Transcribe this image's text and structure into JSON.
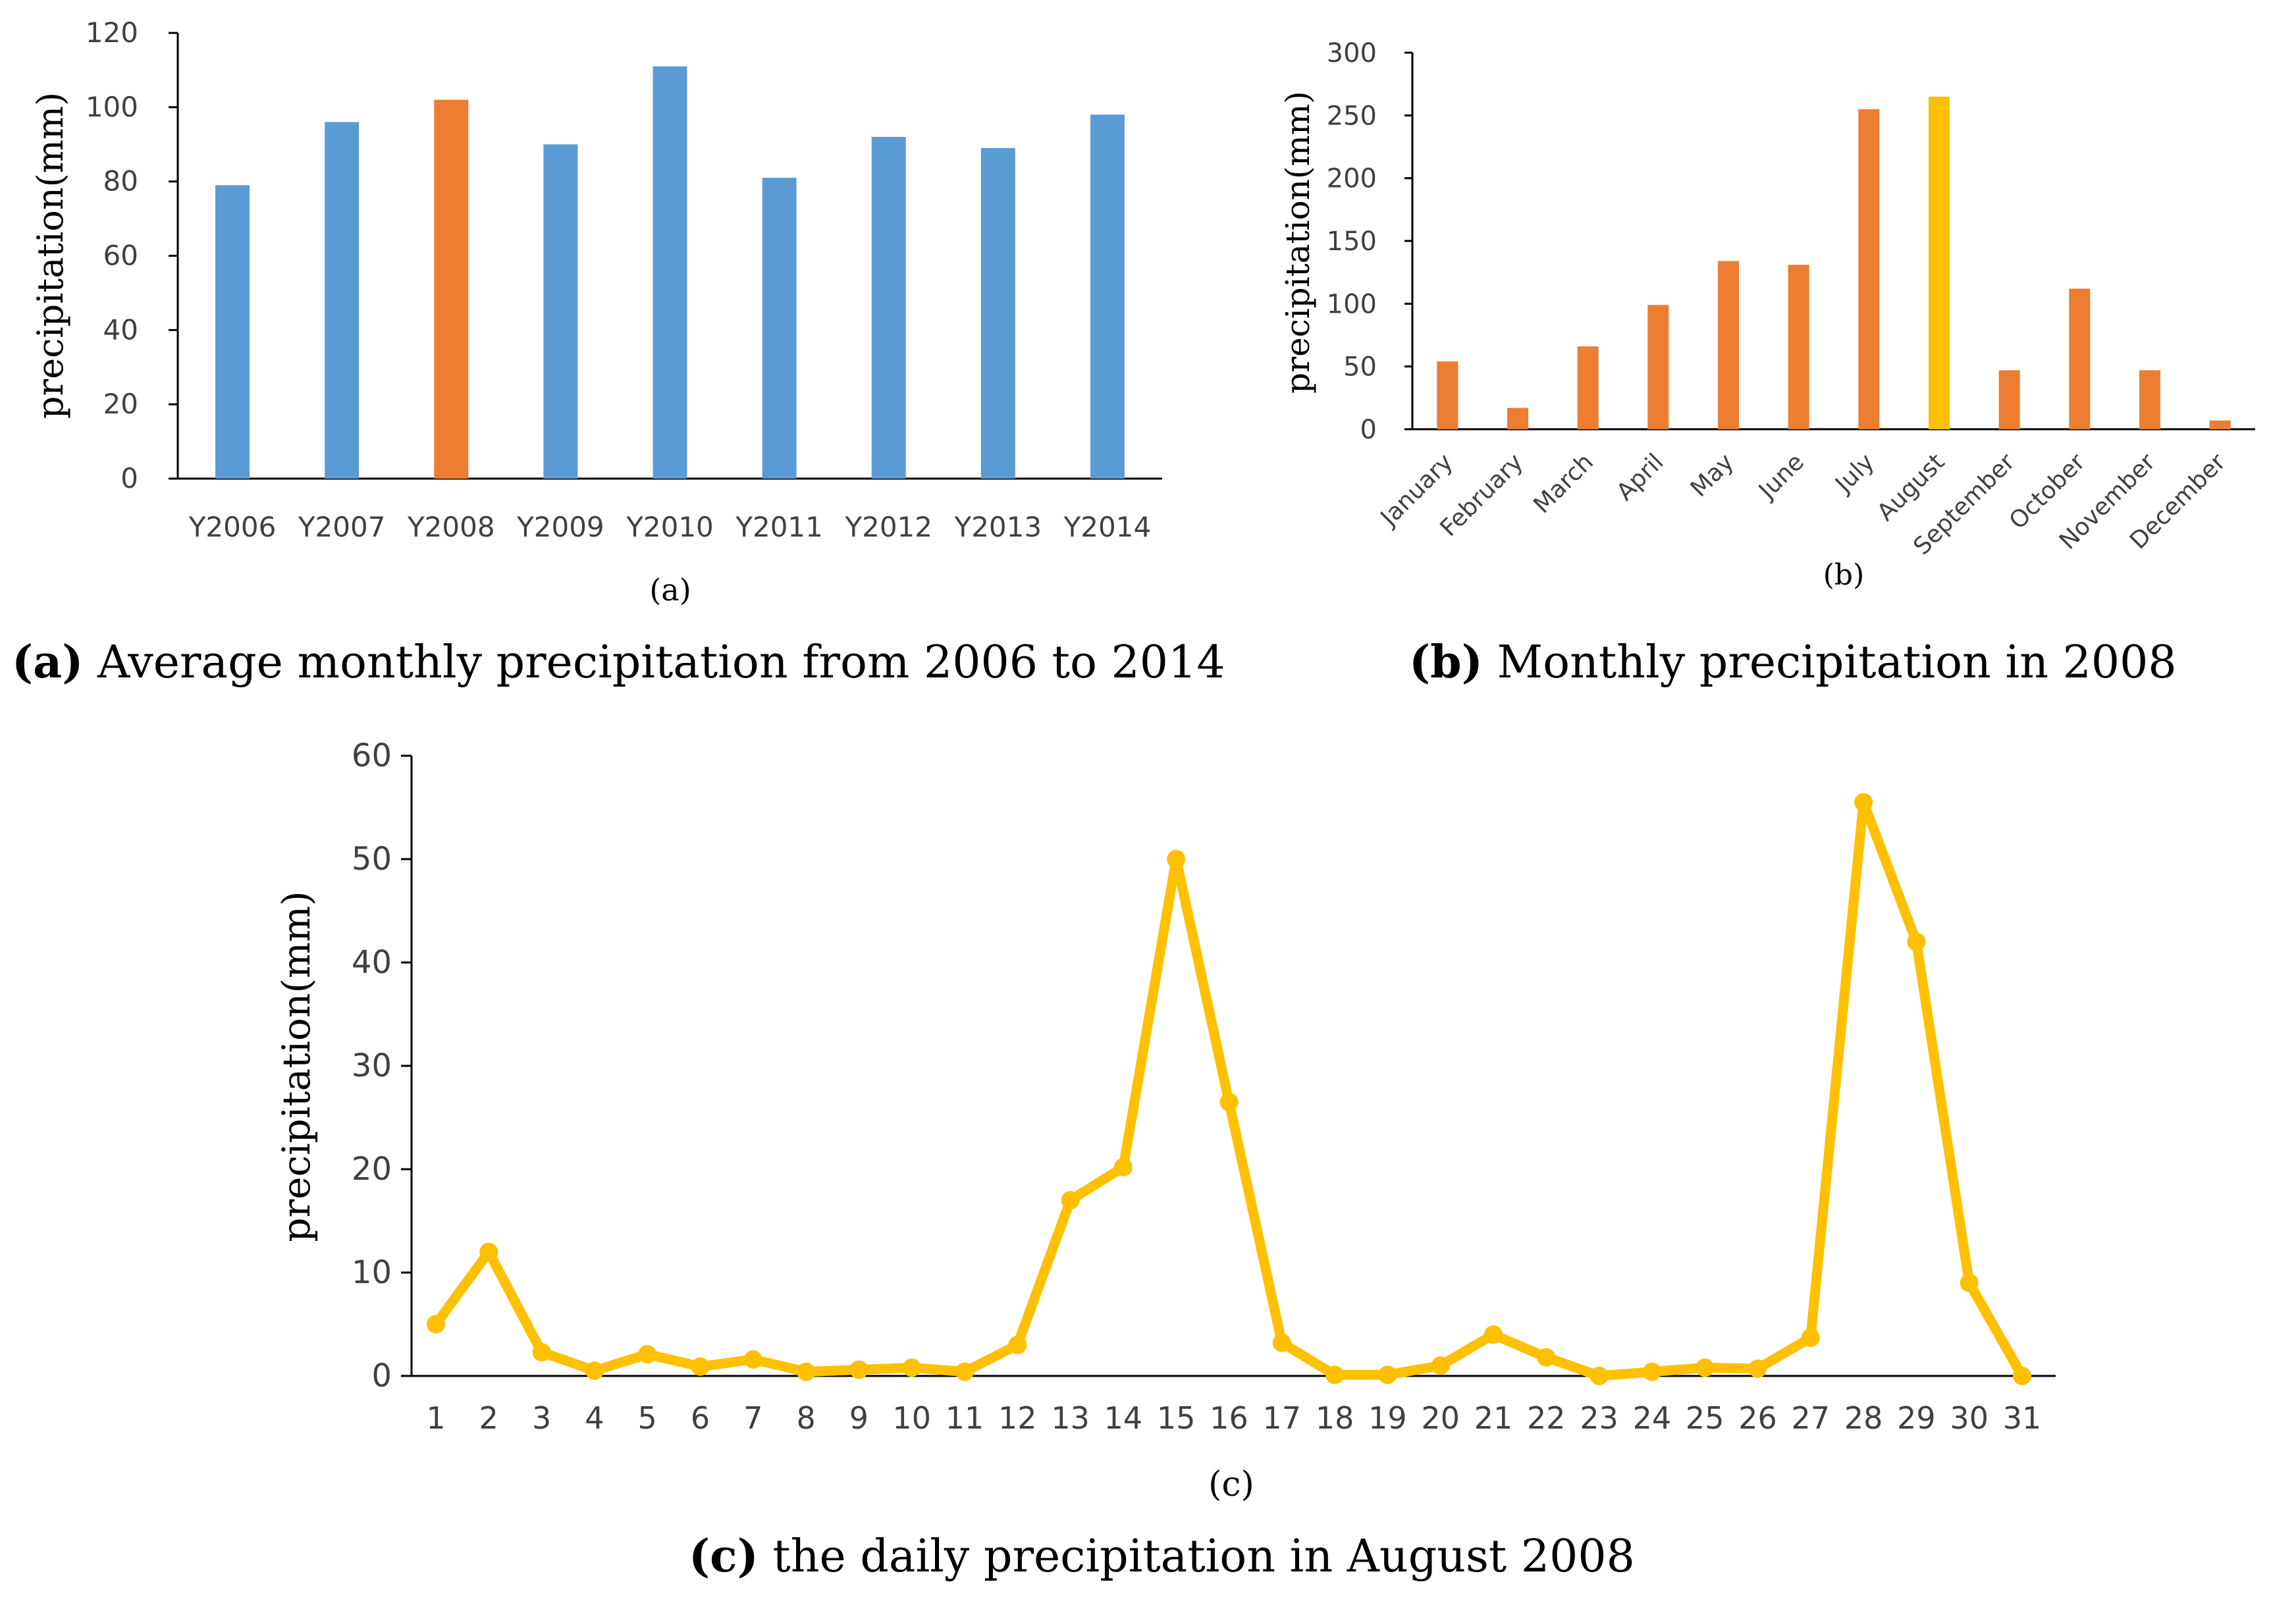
{
  "colors": {
    "blue": "#5B9BD5",
    "orange": "#ED7D31",
    "gold": "#FFC000",
    "axis": "#000000",
    "tick_text": "#404040"
  },
  "chart_data": [
    {
      "type": "bar",
      "panel": "a",
      "title": "",
      "sublabel": "(a)",
      "caption_letter": "(a)",
      "caption_rest": " Average monthly precipitation from 2006 to 2014",
      "xlabel": "",
      "ylabel": "precipitation(mm)",
      "ylim": [
        0,
        120
      ],
      "yticks": [
        0,
        20,
        40,
        60,
        80,
        100,
        120
      ],
      "categories": [
        "Y2006",
        "Y2007",
        "Y2008",
        "Y2009",
        "Y2010",
        "Y2011",
        "Y2012",
        "Y2013",
        "Y2014"
      ],
      "values": [
        79,
        96,
        102,
        90,
        111,
        81,
        92,
        89,
        98
      ],
      "highlight": "Y2008"
    },
    {
      "type": "bar",
      "panel": "b",
      "title": "",
      "sublabel": "(b)",
      "caption_letter": "(b)",
      "caption_rest": " Monthly precipitation in 2008",
      "xlabel": "",
      "ylabel": "precipitation(mm)",
      "ylim": [
        0,
        300
      ],
      "yticks": [
        0,
        50,
        100,
        150,
        200,
        250,
        300
      ],
      "categories": [
        "January",
        "February",
        "March",
        "April",
        "May",
        "June",
        "July",
        "August",
        "September",
        "October",
        "November",
        "December"
      ],
      "values": [
        54,
        17,
        66,
        99,
        134,
        131,
        255,
        265,
        47,
        112,
        47,
        7
      ],
      "highlight": "August"
    },
    {
      "type": "line",
      "panel": "c",
      "title": "",
      "sublabel": "(c)",
      "caption_letter": "(c)",
      "caption_rest": " the daily precipitation in August 2008",
      "xlabel": "",
      "ylabel": "precipitation(mm)",
      "ylim": [
        0,
        60
      ],
      "yticks": [
        0,
        10,
        20,
        30,
        40,
        50,
        60
      ],
      "x": [
        "1",
        "2",
        "3",
        "4",
        "5",
        "6",
        "7",
        "8",
        "9",
        "10",
        "11",
        "12",
        "13",
        "14",
        "15",
        "16",
        "17",
        "18",
        "19",
        "20",
        "21",
        "22",
        "23",
        "24",
        "25",
        "26",
        "27",
        "28",
        "29",
        "30",
        "31"
      ],
      "series": [
        {
          "name": "daily precipitation",
          "values": [
            5.0,
            12.0,
            2.3,
            0.5,
            2.1,
            0.9,
            1.6,
            0.4,
            0.6,
            0.8,
            0.4,
            3.0,
            17.0,
            20.2,
            50.0,
            26.5,
            3.2,
            0.1,
            0.1,
            1.0,
            4.0,
            1.8,
            0.0,
            0.4,
            0.8,
            0.7,
            3.7,
            55.5,
            42.0,
            9.0,
            0.0
          ]
        }
      ]
    }
  ]
}
